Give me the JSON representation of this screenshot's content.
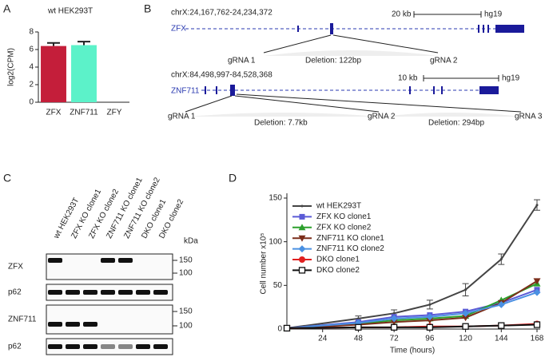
{
  "panels": [
    "A",
    "B",
    "C",
    "D"
  ],
  "chart_data": [
    {
      "type": "bar",
      "title": "wt HEK293T",
      "y_label": "log2(CPM)",
      "categories": [
        "ZFX",
        "ZNF711",
        "ZFY"
      ],
      "values": [
        6.4,
        6.5,
        0
      ],
      "errors": [
        0.35,
        0.4,
        null
      ],
      "colors": [
        "#c41e3a",
        "#5cf2c9",
        null
      ],
      "ylim": [
        0,
        8
      ],
      "yticks": [
        0,
        2,
        4,
        6,
        8
      ]
    },
    {
      "type": "line",
      "x_label": "Time (hours)",
      "y_label": "Cell number x10⁵",
      "x": [
        0,
        48,
        72,
        96,
        120,
        144,
        168
      ],
      "xlim": [
        0,
        168
      ],
      "xticks": [
        24,
        48,
        72,
        96,
        120,
        144,
        168
      ],
      "ylim": [
        0,
        150
      ],
      "yticks": [
        0,
        50,
        100,
        150
      ],
      "legend": "top-left",
      "series": [
        {
          "name": "wt HEK293T",
          "color": "#444444",
          "marker": "none",
          "values": [
            1,
            12,
            18,
            28,
            45,
            80,
            142
          ],
          "errors": [
            0,
            3,
            4,
            5,
            7,
            6,
            6
          ]
        },
        {
          "name": "ZFX KO clone1",
          "color": "#5b5bd6",
          "marker": "square",
          "values": [
            1,
            8,
            14,
            16,
            20,
            30,
            45
          ]
        },
        {
          "name": "ZFX KO clone2",
          "color": "#2ca02c",
          "marker": "triangle",
          "values": [
            1,
            6,
            10,
            12,
            15,
            33,
            52
          ]
        },
        {
          "name": "ZNF711 KO clone1",
          "color": "#7b2e1a",
          "marker": "triangle-down",
          "values": [
            1,
            5,
            8,
            10,
            13,
            30,
            55
          ]
        },
        {
          "name": "ZNF711 KO clone2",
          "color": "#4a90e2",
          "marker": "diamond",
          "values": [
            1,
            7,
            12,
            14,
            18,
            28,
            42
          ]
        },
        {
          "name": "DKO clone1",
          "color": "#e02020",
          "marker": "circle",
          "values": [
            1,
            2,
            2,
            3,
            3,
            4,
            6
          ]
        },
        {
          "name": "DKO clone2",
          "color": "#111111",
          "marker": "open-square",
          "values": [
            1,
            2,
            2,
            2,
            3,
            4,
            5
          ]
        }
      ]
    }
  ],
  "diagram": {
    "zfx": {
      "region": "chrX:24,167,762-24,234,372",
      "scale": "20 kb",
      "genome": "hg19",
      "gene": "ZFX",
      "guides": [
        "gRNA 1",
        "gRNA 2"
      ],
      "deletions": [
        "Deletion: 122bp"
      ]
    },
    "znf711": {
      "region": "chrX:84,498,997-84,528,368",
      "scale": "10 kb",
      "genome": "hg19",
      "gene": "ZNF711",
      "guides": [
        "gRNA 1",
        "gRNA 2",
        "gRNA 3"
      ],
      "deletions": [
        "Deletion: 7.7kb",
        "Deletion: 294bp"
      ]
    }
  },
  "blot": {
    "lanes": [
      "wt HEK293T",
      "ZFX KO  clone1",
      "ZFX KO  clone2",
      "ZNF711 KO clone1",
      "ZNF711 KO clone2",
      "DKO clone1",
      "DKO clone2"
    ],
    "unit": "kDa",
    "rows": [
      {
        "label": "ZFX",
        "markers": [
          150,
          100
        ]
      },
      {
        "label": "p62"
      },
      {
        "label": "ZNF711",
        "markers": [
          150,
          100
        ]
      },
      {
        "label": "p62"
      }
    ]
  }
}
